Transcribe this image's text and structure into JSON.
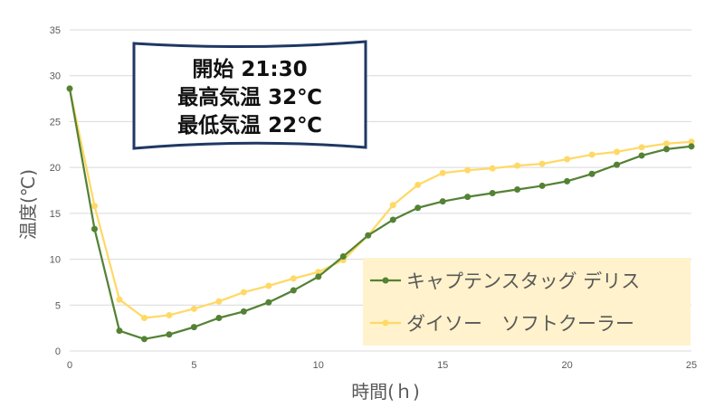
{
  "chart_data": {
    "type": "line",
    "xlabel": "時間(ｈ)",
    "ylabel": "温度(℃)",
    "xlim": [
      0,
      25
    ],
    "ylim": [
      0,
      35
    ],
    "x_ticks": [
      0,
      5,
      10,
      15,
      20,
      25
    ],
    "y_ticks": [
      0,
      5,
      10,
      15,
      20,
      25,
      30,
      35
    ],
    "grid": "horizontal",
    "legend_position": "bottom-right",
    "x": [
      0,
      1,
      2,
      3,
      4,
      5,
      6,
      7,
      8,
      9,
      10,
      11,
      12,
      13,
      14,
      15,
      16,
      17,
      18,
      19,
      20,
      21,
      22,
      23,
      24,
      25
    ],
    "series": [
      {
        "name": "キャプテンスタッグ デリス",
        "color": "#548235",
        "values": [
          28.6,
          13.3,
          2.2,
          1.3,
          1.8,
          2.6,
          3.6,
          4.3,
          5.3,
          6.6,
          8.1,
          10.3,
          12.6,
          14.3,
          15.6,
          16.3,
          16.8,
          17.2,
          17.6,
          18.0,
          18.5,
          19.3,
          20.3,
          21.3,
          22.0,
          22.3
        ]
      },
      {
        "name": "ダイソー　ソフトクーラー",
        "color": "#FFD966",
        "values": [
          28.6,
          15.8,
          5.6,
          3.6,
          3.9,
          4.6,
          5.4,
          6.4,
          7.1,
          7.9,
          8.6,
          9.9,
          12.6,
          15.9,
          18.1,
          19.4,
          19.7,
          19.9,
          20.2,
          20.4,
          20.9,
          21.4,
          21.7,
          22.2,
          22.6,
          22.8
        ]
      }
    ],
    "annotation": {
      "lines": [
        "開始 21:30",
        "最高気温 32℃",
        "最低気温 22℃"
      ],
      "fill": "#ffffff",
      "border": "#1F3864"
    },
    "legend_fill": "#FFF2CC",
    "grid_color": "#D9D9D9"
  }
}
